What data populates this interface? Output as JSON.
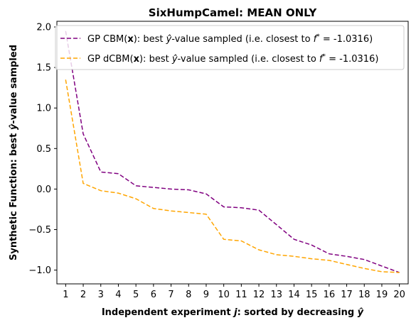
{
  "chart_data": {
    "type": "line",
    "title": "SixHumpCamel: MEAN ONLY",
    "xlabel": "Independent experiment j: sorted by decreasing ŷ",
    "ylabel": "Synthetic Function: best ŷ-value sampled",
    "x": [
      1,
      2,
      3,
      4,
      5,
      6,
      7,
      8,
      9,
      10,
      11,
      12,
      13,
      14,
      15,
      16,
      17,
      18,
      19,
      20
    ],
    "xticks": [
      "1",
      "2",
      "3",
      "4",
      "5",
      "6",
      "7",
      "8",
      "9",
      "10",
      "11",
      "12",
      "13",
      "14",
      "15",
      "16",
      "17",
      "18",
      "19",
      "20"
    ],
    "yticks": [
      "−1.0",
      "−0.5",
      "0.0",
      "0.5",
      "1.0",
      "1.5",
      "2.0"
    ],
    "xlim": [
      0.5,
      20.5
    ],
    "ylim": [
      -1.17,
      2.07
    ],
    "grid": false,
    "legend_position": "top-right",
    "series": [
      {
        "name": "GP CBM(x):   best ŷ-value sampled (i.e. closest to f* = -1.0316)",
        "color": "#800080",
        "linestyle": "dashed",
        "values": [
          1.95,
          0.68,
          0.21,
          0.19,
          0.04,
          0.02,
          0.0,
          -0.01,
          -0.06,
          -0.22,
          -0.23,
          -0.26,
          -0.44,
          -0.62,
          -0.69,
          -0.8,
          -0.83,
          -0.87,
          -0.95,
          -1.03
        ]
      },
      {
        "name": "GP dCBM(x): best ŷ-value sampled (i.e. closest to f* = -1.0316)",
        "color": "#ffa500",
        "linestyle": "dashed",
        "values": [
          1.35,
          0.07,
          -0.02,
          -0.05,
          -0.12,
          -0.24,
          -0.27,
          -0.29,
          -0.31,
          -0.62,
          -0.64,
          -0.75,
          -0.81,
          -0.83,
          -0.86,
          -0.88,
          -0.93,
          -0.98,
          -1.02,
          -1.03
        ]
      }
    ]
  }
}
